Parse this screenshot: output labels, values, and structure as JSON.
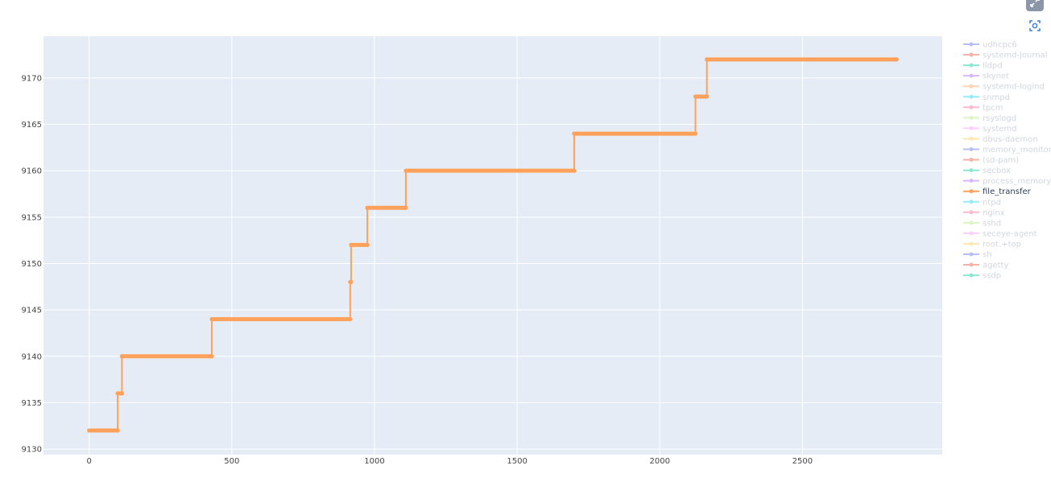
{
  "chart_data": {
    "type": "line",
    "title": "",
    "xlabel": "",
    "ylabel": "",
    "xlim": [
      -160,
      2990
    ],
    "ylim": [
      9129.4,
      9174.5
    ],
    "x_ticks": [
      0,
      500,
      1000,
      1500,
      2000,
      2500
    ],
    "y_ticks": [
      9130,
      9135,
      9140,
      9145,
      9150,
      9155,
      9160,
      9165,
      9170
    ],
    "grid": true,
    "legend_position": "right",
    "series": [
      {
        "name": "file_transfer",
        "color": "#ffa15a",
        "x": [
          0,
          100,
          100,
          115,
          115,
          430,
          430,
          915,
          915,
          918,
          918,
          975,
          975,
          1110,
          1110,
          1700,
          1700,
          2125,
          2125,
          2165,
          2165,
          2830
        ],
        "y": [
          9132,
          9132,
          9136,
          9136,
          9140,
          9140,
          9144,
          9144,
          9148,
          9148,
          9152,
          9152,
          9156,
          9156,
          9160,
          9160,
          9164,
          9164,
          9168,
          9168,
          9172,
          9172
        ]
      }
    ]
  },
  "legend": {
    "active": "file_transfer",
    "items": [
      {
        "name": "udhcpc6",
        "color": "#636efa"
      },
      {
        "name": "systemd-journal",
        "color": "#ef553b"
      },
      {
        "name": "lldpd",
        "color": "#00cc96"
      },
      {
        "name": "skynet",
        "color": "#ab63fa"
      },
      {
        "name": "systemd-logind",
        "color": "#ffa15a"
      },
      {
        "name": "snmpd",
        "color": "#19d3f3"
      },
      {
        "name": "tpcm",
        "color": "#ff6692"
      },
      {
        "name": "rsyslogd",
        "color": "#b6e880"
      },
      {
        "name": "systemd",
        "color": "#ff97ff"
      },
      {
        "name": "dbus-daemon",
        "color": "#fecb52"
      },
      {
        "name": "memory_monitor.",
        "color": "#636efa"
      },
      {
        "name": "(sd-pam)",
        "color": "#ef553b"
      },
      {
        "name": "secbox",
        "color": "#00cc96"
      },
      {
        "name": "process_memory_",
        "color": "#ab63fa"
      },
      {
        "name": "file_transfer",
        "color": "#ffa15a"
      },
      {
        "name": "ntpd",
        "color": "#19d3f3"
      },
      {
        "name": "nginx",
        "color": "#ff6692"
      },
      {
        "name": "sshd",
        "color": "#b6e880"
      },
      {
        "name": "seceye-agent",
        "color": "#ff97ff"
      },
      {
        "name": "root.+top",
        "color": "#fecb52"
      },
      {
        "name": "sh",
        "color": "#636efa"
      },
      {
        "name": "agetty",
        "color": "#ef553b"
      },
      {
        "name": "ssdp",
        "color": "#00cc96"
      }
    ]
  },
  "modebar": {
    "expand_icon": "expand-icon",
    "screenshot_icon": "camera-icon"
  }
}
